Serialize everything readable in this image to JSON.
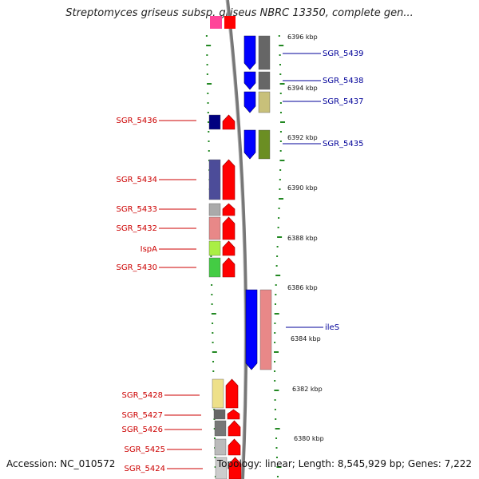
{
  "title": "Streptomyces griseus subsp. griseus NBRC 13350, complete gen...",
  "footer": {
    "accession": "Accession: NC_010572",
    "stats": "Topology: linear; Length: 8,545,929 bp; Genes: 7,222"
  },
  "colors": {
    "forward_label": "#cc0000",
    "reverse_label": "#000099",
    "ticks": "#228822",
    "backbone": "#888888",
    "plus_strand_gene": "#ff0000",
    "minus_strand_gene": "#0000ff"
  },
  "scale": {
    "unit": "kbp",
    "labels": [
      "6396 kbp",
      "6394 kbp",
      "6392 kbp",
      "6390 kbp",
      "6388 kbp",
      "6386 kbp",
      "6384 kbp",
      "6382 kbp",
      "6380 kbp"
    ],
    "kbp_values": [
      6396,
      6394,
      6392,
      6390,
      6388,
      6386,
      6384,
      6382,
      6380
    ]
  },
  "genes_left": [
    {
      "name": "SGR_5436",
      "cog_color": "#000080"
    },
    {
      "name": "SGR_5434",
      "cog_color": "#4c4c99"
    },
    {
      "name": "SGR_5433",
      "cog_color": "#aaaaaa"
    },
    {
      "name": "SGR_5432",
      "cog_color": "#e88888"
    },
    {
      "name": "IspA",
      "cog_color": "#aaee44"
    },
    {
      "name": "SGR_5430",
      "cog_color": "#44cc44"
    },
    {
      "name": "SGR_5428",
      "cog_color": "#eee08a"
    },
    {
      "name": "SGR_5427",
      "cog_color": "#666666"
    },
    {
      "name": "SGR_5426",
      "cog_color": "#777777"
    },
    {
      "name": "SGR_5425",
      "cog_color": "#bbbbbb"
    },
    {
      "name": "SGR_5424",
      "cog_color": "#cccccc"
    }
  ],
  "genes_right": [
    {
      "name": "SGR_5439",
      "cog_color": "#666666"
    },
    {
      "name": "SGR_5438",
      "cog_color": "#666666"
    },
    {
      "name": "SGR_5437",
      "cog_color": "#c8c07a"
    },
    {
      "name": "SGR_5435",
      "cog_color": "#6b8e23"
    },
    {
      "name": "ileS",
      "cog_color": "#e88888"
    }
  ]
}
